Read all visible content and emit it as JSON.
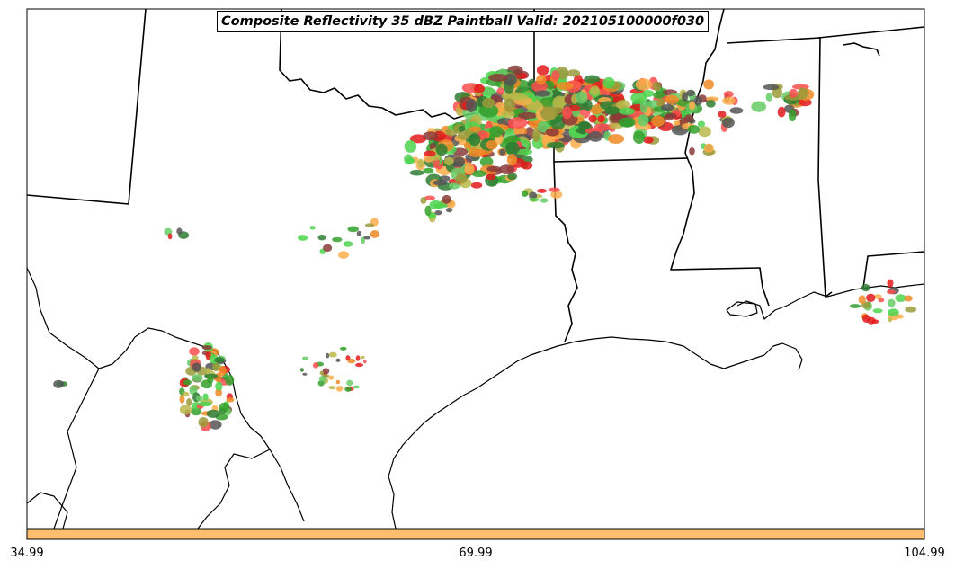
{
  "map": {
    "title": "Composite Reflectivity 35 dBZ Paintball Valid: 202105100000f030",
    "region": "Southern Plains / Gulf Coast",
    "field": "Composite Reflectivity",
    "threshold_dbz": 35
  },
  "colorbar": {
    "color": "#fdbf6f",
    "ticks": [
      {
        "label": "34.99"
      },
      {
        "label": "69.99"
      },
      {
        "label": "104.99"
      }
    ]
  },
  "colors": {
    "paintball_members": [
      "#f08a24",
      "#e31a1c",
      "#fb4e4e",
      "#4dd34d",
      "#33a02c",
      "#8b3a3a",
      "#9a9a3a",
      "#555555",
      "#fdae4b",
      "#2e7d32",
      "#b8b84a",
      "#66cc66"
    ],
    "boundaries": "#000000",
    "background": "#ffffff"
  }
}
